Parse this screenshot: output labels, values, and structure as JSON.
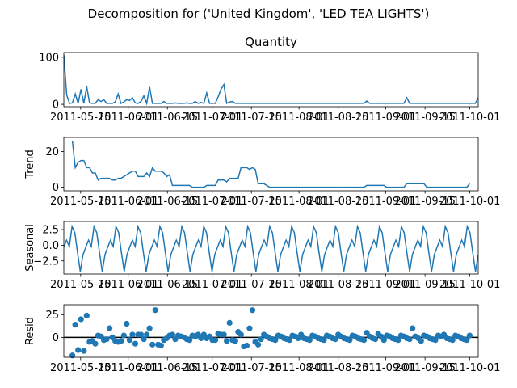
{
  "figure": {
    "suptitle": "Decomposition for ('United Kingdom', 'LED TEA LIGHTS')",
    "line_color": "#1f77b4"
  },
  "chart_data": [
    {
      "type": "line",
      "title": "Quantity",
      "ylabel": "",
      "ylim": [
        -5,
        110
      ],
      "yticks": [
        0,
        100
      ],
      "x_start": "2011-05-09",
      "x_end": "2011-10-04",
      "xticks": [
        "2011-05-15",
        "2011-06-01",
        "2011-06-15",
        "2011-07-01",
        "2011-07-15",
        "2011-08-01",
        "2011-08-15",
        "2011-09-01",
        "2011-09-15",
        "2011-10-01"
      ],
      "values": [
        105,
        20,
        2,
        3,
        22,
        2,
        32,
        2,
        38,
        3,
        2,
        2,
        10,
        6,
        10,
        2,
        2,
        2,
        5,
        22,
        2,
        5,
        10,
        8,
        14,
        3,
        2,
        6,
        18,
        2,
        37,
        2,
        2,
        2,
        2,
        6,
        2,
        2,
        2,
        3,
        2,
        2,
        2,
        3,
        2,
        2,
        6,
        2,
        4,
        2,
        24,
        2,
        2,
        2,
        16,
        32,
        42,
        2,
        5,
        6,
        2,
        2,
        2,
        2,
        2,
        2,
        2,
        2,
        2,
        2,
        2,
        2,
        2,
        2,
        2,
        2,
        2,
        2,
        2,
        2,
        2,
        2,
        2,
        2,
        2,
        2,
        2,
        2,
        2,
        2,
        2,
        2,
        2,
        2,
        2,
        2,
        2,
        2,
        2,
        2,
        2,
        2,
        2,
        2,
        2,
        2,
        7,
        2,
        2,
        2,
        2,
        2,
        2,
        2,
        2,
        2,
        2,
        2,
        2,
        2,
        14,
        2,
        2,
        2,
        2,
        2,
        2,
        2,
        2,
        2,
        2,
        2,
        2,
        2,
        2,
        2,
        2,
        2,
        2,
        2,
        2,
        2,
        2,
        2,
        2,
        14
      ]
    },
    {
      "type": "line",
      "title": "",
      "ylabel": "Trend",
      "ylim": [
        -2,
        28
      ],
      "yticks": [
        0,
        20
      ],
      "x_start": "2011-05-09",
      "x_end": "2011-10-04",
      "xticks": [
        "2011-05-15",
        "2011-06-01",
        "2011-06-15",
        "2011-07-01",
        "2011-07-15",
        "2011-08-01",
        "2011-08-15",
        "2011-09-01",
        "2011-09-15",
        "2011-10-01"
      ],
      "values": [
        null,
        null,
        null,
        26,
        11,
        14,
        15,
        15,
        11,
        11,
        8,
        8,
        4,
        5,
        5,
        5,
        5,
        4,
        4,
        5,
        5,
        6,
        7,
        8,
        9,
        9,
        6,
        6,
        6,
        8,
        6,
        11,
        9,
        9,
        9,
        8,
        6,
        7,
        1,
        1,
        1,
        1,
        1,
        1,
        1,
        0,
        0,
        0,
        0,
        0,
        1,
        1,
        1,
        1,
        4,
        4,
        4,
        3,
        5,
        5,
        5,
        5,
        11,
        11,
        11,
        10,
        11,
        10,
        2,
        2,
        2,
        1,
        0,
        0,
        0,
        0,
        0,
        0,
        0,
        0,
        0,
        0,
        0,
        0,
        0,
        0,
        0,
        0,
        0,
        0,
        0,
        0,
        0,
        0,
        0,
        0,
        0,
        0,
        0,
        0,
        0,
        0,
        0,
        0,
        0,
        0,
        1,
        1,
        1,
        1,
        1,
        1,
        1,
        0,
        0,
        0,
        0,
        0,
        0,
        0,
        2,
        2,
        2,
        2,
        2,
        2,
        2,
        0,
        0,
        0,
        0,
        0,
        0,
        0,
        0,
        0,
        0,
        0,
        0,
        0,
        0,
        0,
        2,
        null,
        null,
        null
      ]
    },
    {
      "type": "line",
      "title": "",
      "ylabel": "Seasonal",
      "ylim": [
        -4.6,
        3.8
      ],
      "yticks": [
        2.5,
        0.0,
        -2.5
      ],
      "ytick_labels": [
        "2.5",
        "0.0",
        "−2.5"
      ],
      "x_start": "2011-05-09",
      "x_end": "2011-10-04",
      "xticks": [
        "2011-05-15",
        "2011-06-01",
        "2011-06-15",
        "2011-07-01",
        "2011-07-15",
        "2011-08-01",
        "2011-08-15",
        "2011-09-01",
        "2011-09-15",
        "2011-10-01"
      ],
      "pattern": [
        -0.3,
        0.8,
        -0.2,
        3.0,
        2.0,
        -1.2,
        -4.2,
        -1.5
      ],
      "repeat_count": 19
    },
    {
      "type": "scatter",
      "title": "",
      "ylabel": "Resid",
      "ylim": [
        -22,
        36
      ],
      "yticks": [
        0,
        25
      ],
      "zero_line": true,
      "x_start": "2011-05-09",
      "x_end": "2011-10-04",
      "xticks": [
        "2011-05-15",
        "2011-06-01",
        "2011-06-15",
        "2011-07-01",
        "2011-07-15",
        "2011-08-01",
        "2011-08-15",
        "2011-09-01",
        "2011-09-15",
        "2011-10-01"
      ],
      "values": [
        null,
        null,
        null,
        -20,
        14,
        -14,
        20,
        -15,
        24,
        -5,
        -4,
        -7,
        2,
        1,
        -3,
        -2,
        10,
        0,
        -4,
        -5,
        -4,
        2,
        15,
        -3,
        3,
        -7,
        3,
        3,
        -2,
        3,
        10,
        -8,
        30,
        -8,
        -9,
        -3,
        -1,
        2,
        3,
        -2,
        2,
        1,
        0,
        -2,
        -3,
        2,
        1,
        3,
        -1,
        3,
        -1,
        1,
        -3,
        -3,
        4,
        3,
        3,
        -4,
        16,
        -3,
        -4,
        6,
        3,
        -10,
        -9,
        10,
        30,
        -5,
        -8,
        -2,
        3,
        1,
        -1,
        -2,
        -3,
        2,
        1,
        -1,
        -2,
        -3,
        2,
        1,
        -1,
        3,
        -1,
        -2,
        -3,
        2,
        1,
        -1,
        -2,
        -3,
        2,
        1,
        -1,
        -2,
        3,
        1,
        -1,
        -2,
        -3,
        2,
        1,
        -1,
        -2,
        -3,
        5,
        1,
        -1,
        -2,
        4,
        1,
        -3,
        2,
        1,
        -1,
        -2,
        -3,
        2,
        1,
        -1,
        -2,
        10,
        1,
        -1,
        -4,
        2,
        1,
        -1,
        -2,
        -3,
        2,
        1,
        3,
        -1,
        -2,
        -3,
        2,
        1,
        -1,
        -2,
        -3,
        2,
        null,
        null,
        null
      ]
    }
  ]
}
